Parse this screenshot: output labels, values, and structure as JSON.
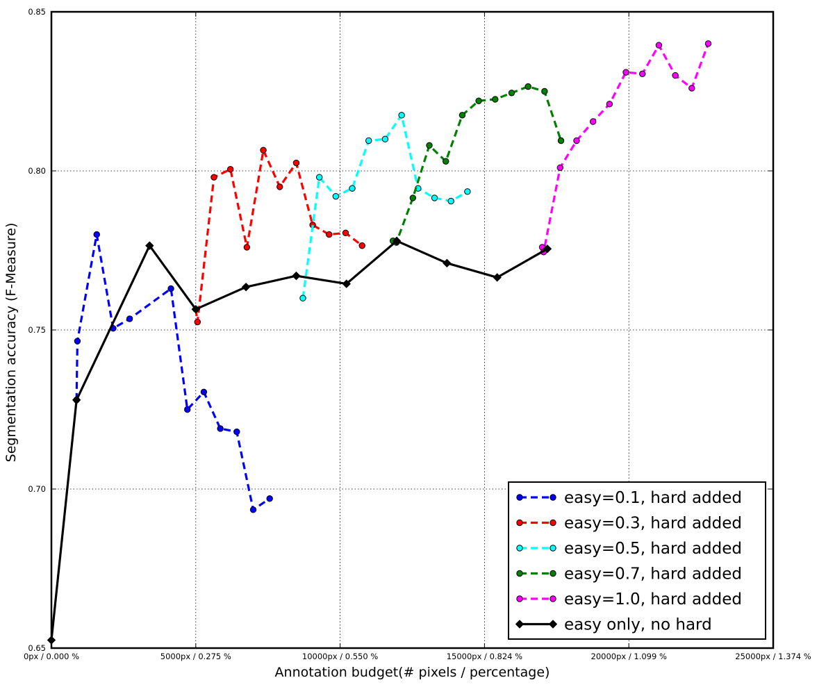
{
  "chart_data": {
    "type": "line",
    "title": "",
    "xlabel": "Annotation budget(# pixels / percentage)",
    "ylabel": "Segmentation accuracy (F-Measure)",
    "xlim": [
      0,
      25000
    ],
    "ylim": [
      0.65,
      0.85
    ],
    "grid": true,
    "grid_style": "dotted",
    "legend_position": "lower-right",
    "x_ticks": [
      {
        "value": 0,
        "label": "0px / 0.000 %"
      },
      {
        "value": 5000,
        "label": "5000px / 0.275 %"
      },
      {
        "value": 10000,
        "label": "10000px / 0.550 %"
      },
      {
        "value": 15000,
        "label": "15000px / 0.824 %"
      },
      {
        "value": 20000,
        "label": "20000px / 1.099 %"
      },
      {
        "value": 25000,
        "label": "25000px / 1.374 %"
      }
    ],
    "y_ticks": [
      {
        "value": 0.65,
        "label": "0.65"
      },
      {
        "value": 0.7,
        "label": "0.70"
      },
      {
        "value": 0.75,
        "label": "0.75"
      },
      {
        "value": 0.8,
        "label": "0.80"
      },
      {
        "value": 0.85,
        "label": "0.85"
      }
    ],
    "series": [
      {
        "name": "easy=0.1, hard added",
        "color": "#0000ff",
        "line_style": "dashed",
        "marker": "circle",
        "points": [
          [
            870,
            0.728
          ],
          [
            900,
            0.7465
          ],
          [
            1570,
            0.78
          ],
          [
            2140,
            0.7505
          ],
          [
            2710,
            0.7535
          ],
          [
            4140,
            0.763
          ],
          [
            4710,
            0.725
          ],
          [
            5280,
            0.7305
          ],
          [
            5850,
            0.719
          ],
          [
            6420,
            0.718
          ],
          [
            6990,
            0.6935
          ],
          [
            7560,
            0.697
          ]
        ]
      },
      {
        "name": "easy=0.3, hard added",
        "color": "#ff0000",
        "line_style": "dashed",
        "marker": "circle",
        "points": [
          [
            5000,
            0.7565
          ],
          [
            5060,
            0.7525
          ],
          [
            5630,
            0.798
          ],
          [
            6200,
            0.8005
          ],
          [
            6770,
            0.776
          ],
          [
            7340,
            0.8065
          ],
          [
            7910,
            0.795
          ],
          [
            8480,
            0.8025
          ],
          [
            9050,
            0.783
          ],
          [
            9620,
            0.78
          ],
          [
            10190,
            0.7805
          ],
          [
            10760,
            0.7765
          ]
        ]
      },
      {
        "name": "easy=0.5, hard added",
        "color": "#00ffff",
        "line_style": "dashed",
        "marker": "circle",
        "points": [
          [
            8710,
            0.76
          ],
          [
            9280,
            0.798
          ],
          [
            9850,
            0.792
          ],
          [
            10420,
            0.7945
          ],
          [
            10990,
            0.8095
          ],
          [
            11560,
            0.81
          ],
          [
            12130,
            0.8175
          ],
          [
            12700,
            0.7945
          ],
          [
            13270,
            0.7915
          ],
          [
            13840,
            0.7905
          ],
          [
            14410,
            0.7935
          ]
        ]
      },
      {
        "name": "easy=0.7, hard added",
        "color": "#008000",
        "line_style": "dashed",
        "marker": "circle",
        "points": [
          [
            11830,
            0.778
          ],
          [
            11950,
            0.7775
          ],
          [
            12520,
            0.7915
          ],
          [
            13090,
            0.808
          ],
          [
            13660,
            0.803
          ],
          [
            14230,
            0.8175
          ],
          [
            14800,
            0.822
          ],
          [
            15370,
            0.8225
          ],
          [
            15940,
            0.8245
          ],
          [
            16510,
            0.8265
          ],
          [
            17080,
            0.825
          ],
          [
            17650,
            0.8095
          ]
        ]
      },
      {
        "name": "easy=1.0, hard added",
        "color": "#ff00ff",
        "line_style": "dashed",
        "marker": "circle",
        "points": [
          [
            17000,
            0.776
          ],
          [
            17050,
            0.7745
          ],
          [
            17620,
            0.801
          ],
          [
            18190,
            0.8095
          ],
          [
            18760,
            0.8155
          ],
          [
            19330,
            0.821
          ],
          [
            19900,
            0.831
          ],
          [
            20470,
            0.8305
          ],
          [
            21040,
            0.8395
          ],
          [
            21610,
            0.83
          ],
          [
            22180,
            0.826
          ],
          [
            22750,
            0.84
          ]
        ]
      },
      {
        "name": "easy only, no hard",
        "color": "#000000",
        "line_style": "solid",
        "marker": "diamond",
        "points": [
          [
            0,
            0.6525
          ],
          [
            870,
            0.728
          ],
          [
            3400,
            0.7765
          ],
          [
            5000,
            0.7565
          ],
          [
            6740,
            0.7635
          ],
          [
            8480,
            0.767
          ],
          [
            10220,
            0.7645
          ],
          [
            11960,
            0.778
          ],
          [
            13700,
            0.771
          ],
          [
            15440,
            0.7665
          ],
          [
            17180,
            0.7755
          ]
        ]
      }
    ]
  }
}
